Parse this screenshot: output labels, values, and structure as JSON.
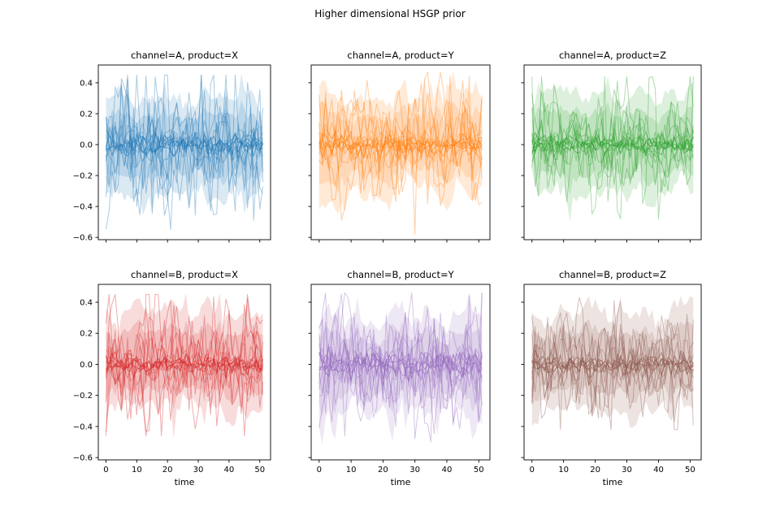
{
  "figure": {
    "title": "Higher dimensional HSGP prior",
    "background_color": "#ffffff",
    "text_color": "#000000"
  },
  "chart_data": {
    "type": "line",
    "title": "Higher dimensional HSGP prior",
    "xlabel": "time",
    "ylabel": "",
    "grid": "off",
    "legend": "none",
    "layout": "2 rows x 3 columns, shared x and y axes",
    "xlim": [
      -2.5,
      53.5
    ],
    "ylim": [
      -0.615,
      0.515
    ],
    "x_ticks": [
      0,
      10,
      20,
      30,
      40,
      50
    ],
    "x_tick_labels": [
      "0",
      "10",
      "20",
      "30",
      "40",
      "50"
    ],
    "y_ticks": [
      0.4,
      0.2,
      0.0,
      -0.2,
      -0.4,
      -0.6
    ],
    "y_tick_labels": [
      "0.4",
      "0.2",
      "0.0",
      "−0.2",
      "−0.4",
      "−0.6"
    ],
    "x_range": [
      0,
      51
    ],
    "n_points_per_line": 52,
    "content_description": "Random HSGP prior samples: translucent uncertainty band plus many jagged sample lines centered at 0",
    "n_sample_lines": 10,
    "n_core_lines": 5,
    "band_upper_mean": 0.31,
    "band_lower_mean": -0.31,
    "subplots": [
      {
        "row": 0,
        "col": 0,
        "title": "channel=A, product=X",
        "channel": "A",
        "product": "X",
        "color": "#1f77b4",
        "render_seed": 3,
        "observed_y_min": -0.57,
        "observed_y_max": 0.46
      },
      {
        "row": 0,
        "col": 1,
        "title": "channel=A, product=Y",
        "channel": "A",
        "product": "Y",
        "color": "#ff7f0e",
        "render_seed": 7,
        "observed_y_min": -0.6,
        "observed_y_max": 0.48
      },
      {
        "row": 0,
        "col": 2,
        "title": "channel=A, product=Z",
        "channel": "A",
        "product": "Z",
        "color": "#2ca02c",
        "render_seed": 11,
        "observed_y_min": -0.5,
        "observed_y_max": 0.45
      },
      {
        "row": 1,
        "col": 0,
        "title": "channel=B, product=X",
        "channel": "B",
        "product": "X",
        "color": "#d62728",
        "render_seed": 5,
        "observed_y_min": -0.48,
        "observed_y_max": 0.46
      },
      {
        "row": 1,
        "col": 1,
        "title": "channel=B, product=Y",
        "channel": "B",
        "product": "Y",
        "color": "#9467bd",
        "render_seed": 13,
        "observed_y_min": -0.52,
        "observed_y_max": 0.47
      },
      {
        "row": 1,
        "col": 2,
        "title": "channel=B, product=Z",
        "channel": "B",
        "product": "Z",
        "color": "#8c564b",
        "render_seed": 17,
        "observed_y_min": -0.44,
        "observed_y_max": 0.44
      }
    ]
  }
}
